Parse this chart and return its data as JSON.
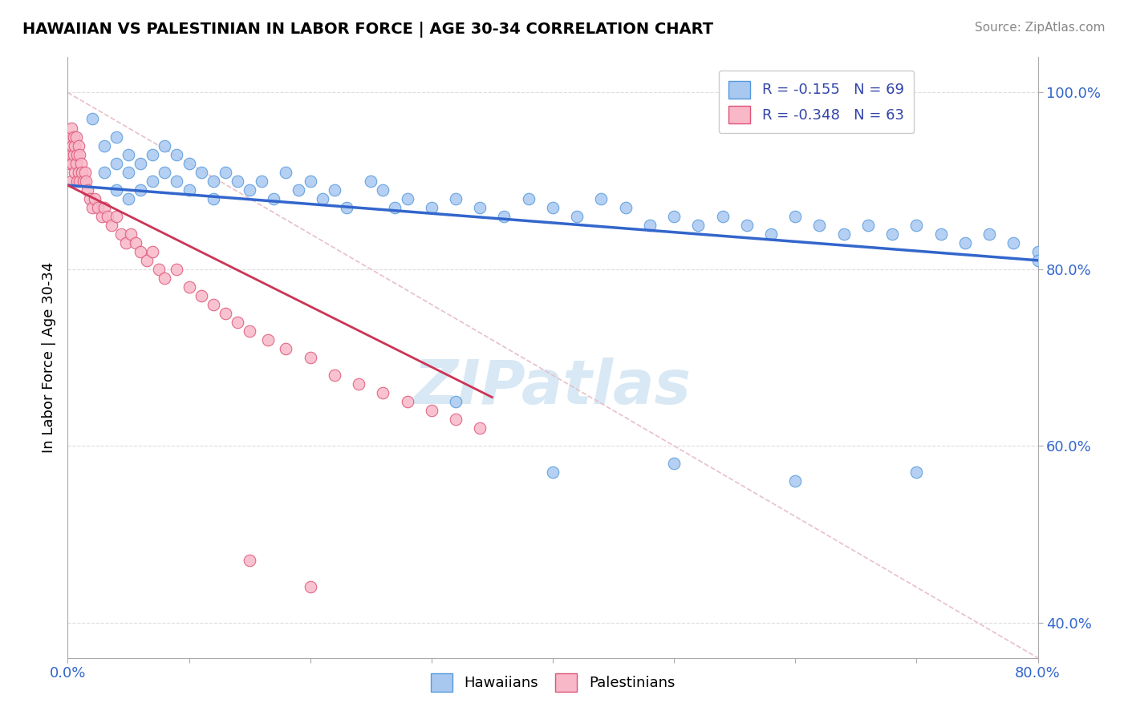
{
  "title": "HAWAIIAN VS PALESTINIAN IN LABOR FORCE | AGE 30-34 CORRELATION CHART",
  "source": "Source: ZipAtlas.com",
  "xlabel_hawaiians": "Hawaiians",
  "xlabel_palestinians": "Palestinians",
  "ylabel": "In Labor Force | Age 30-34",
  "xlim": [
    0.0,
    0.8
  ],
  "ylim": [
    0.36,
    1.04
  ],
  "R_hawaiians": -0.155,
  "N_hawaiians": 69,
  "R_palestinians": -0.348,
  "N_palestinians": 63,
  "hawaiian_color": "#a8c8f0",
  "hawaiian_edge": "#5599dd",
  "palestinian_color": "#f8b8c8",
  "palestinian_edge": "#dd5577",
  "trendline_hawaiian_color": "#3366cc",
  "trendline_palestinian_color": "#cc3355",
  "diagonal_color": "#cccccc",
  "watermark": "ZIPatlas",
  "hawaiians_x": [
    0.02,
    0.03,
    0.03,
    0.04,
    0.04,
    0.04,
    0.05,
    0.05,
    0.05,
    0.06,
    0.06,
    0.07,
    0.07,
    0.08,
    0.08,
    0.09,
    0.09,
    0.1,
    0.1,
    0.11,
    0.12,
    0.12,
    0.13,
    0.14,
    0.15,
    0.16,
    0.17,
    0.18,
    0.19,
    0.2,
    0.21,
    0.22,
    0.23,
    0.25,
    0.26,
    0.27,
    0.28,
    0.3,
    0.32,
    0.34,
    0.36,
    0.38,
    0.4,
    0.42,
    0.44,
    0.46,
    0.48,
    0.5,
    0.52,
    0.54,
    0.56,
    0.58,
    0.6,
    0.62,
    0.64,
    0.66,
    0.68,
    0.7,
    0.72,
    0.74,
    0.76,
    0.78,
    0.8,
    0.32,
    0.4,
    0.5,
    0.6,
    0.7,
    0.8
  ],
  "hawaiians_y": [
    0.97,
    0.94,
    0.91,
    0.95,
    0.92,
    0.89,
    0.93,
    0.91,
    0.88,
    0.92,
    0.89,
    0.93,
    0.9,
    0.94,
    0.91,
    0.93,
    0.9,
    0.92,
    0.89,
    0.91,
    0.9,
    0.88,
    0.91,
    0.9,
    0.89,
    0.9,
    0.88,
    0.91,
    0.89,
    0.9,
    0.88,
    0.89,
    0.87,
    0.9,
    0.89,
    0.87,
    0.88,
    0.87,
    0.88,
    0.87,
    0.86,
    0.88,
    0.87,
    0.86,
    0.88,
    0.87,
    0.85,
    0.86,
    0.85,
    0.86,
    0.85,
    0.84,
    0.86,
    0.85,
    0.84,
    0.85,
    0.84,
    0.85,
    0.84,
    0.83,
    0.84,
    0.83,
    0.82,
    0.65,
    0.57,
    0.58,
    0.56,
    0.57,
    0.81
  ],
  "palestinians_x": [
    0.001,
    0.002,
    0.002,
    0.003,
    0.003,
    0.003,
    0.004,
    0.004,
    0.005,
    0.005,
    0.006,
    0.006,
    0.007,
    0.007,
    0.008,
    0.008,
    0.009,
    0.009,
    0.01,
    0.01,
    0.011,
    0.012,
    0.013,
    0.014,
    0.015,
    0.016,
    0.018,
    0.02,
    0.022,
    0.025,
    0.028,
    0.03,
    0.033,
    0.036,
    0.04,
    0.044,
    0.048,
    0.052,
    0.056,
    0.06,
    0.065,
    0.07,
    0.075,
    0.08,
    0.09,
    0.1,
    0.11,
    0.12,
    0.13,
    0.14,
    0.15,
    0.165,
    0.18,
    0.2,
    0.22,
    0.24,
    0.26,
    0.28,
    0.3,
    0.32,
    0.34,
    0.15,
    0.2
  ],
  "palestinians_y": [
    0.94,
    0.95,
    0.92,
    0.96,
    0.93,
    0.9,
    0.94,
    0.92,
    0.95,
    0.93,
    0.94,
    0.91,
    0.95,
    0.92,
    0.93,
    0.9,
    0.94,
    0.91,
    0.93,
    0.9,
    0.92,
    0.91,
    0.9,
    0.91,
    0.9,
    0.89,
    0.88,
    0.87,
    0.88,
    0.87,
    0.86,
    0.87,
    0.86,
    0.85,
    0.86,
    0.84,
    0.83,
    0.84,
    0.83,
    0.82,
    0.81,
    0.82,
    0.8,
    0.79,
    0.8,
    0.78,
    0.77,
    0.76,
    0.75,
    0.74,
    0.73,
    0.72,
    0.71,
    0.7,
    0.68,
    0.67,
    0.66,
    0.65,
    0.64,
    0.63,
    0.62,
    0.47,
    0.44
  ]
}
